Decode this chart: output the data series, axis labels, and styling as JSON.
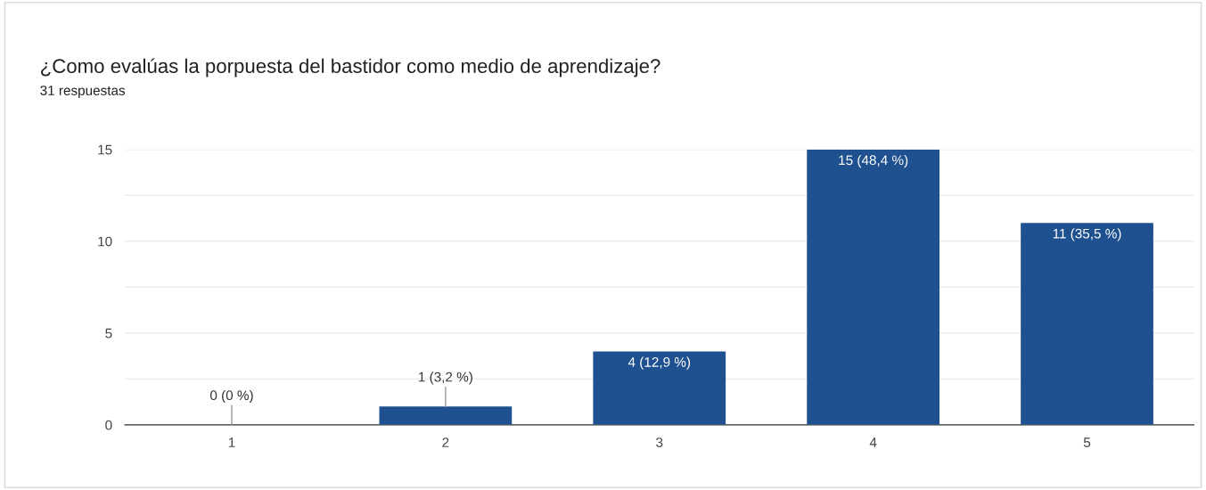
{
  "chart_data": {
    "type": "bar",
    "title": "¿Como evalúas la porpuesta del bastidor como medio de aprendizaje?",
    "subtitle": "31 respuestas",
    "categories": [
      "1",
      "2",
      "3",
      "4",
      "5"
    ],
    "values": [
      0,
      1,
      4,
      15,
      11
    ],
    "value_labels": [
      "0 (0 %)",
      "1 (3,2 %)",
      "4 (12,9 %)",
      "15 (48,4 %)",
      "11 (35,5 %)"
    ],
    "color": "#1f5190",
    "ylim": [
      0,
      15
    ],
    "yticks": [
      0,
      {
        "value": 2.5,
        "label": null
      },
      5,
      {
        "value": 7.5,
        "label": null
      },
      10,
      {
        "value": 12.5,
        "label": null
      },
      15
    ],
    "grid": "y"
  }
}
